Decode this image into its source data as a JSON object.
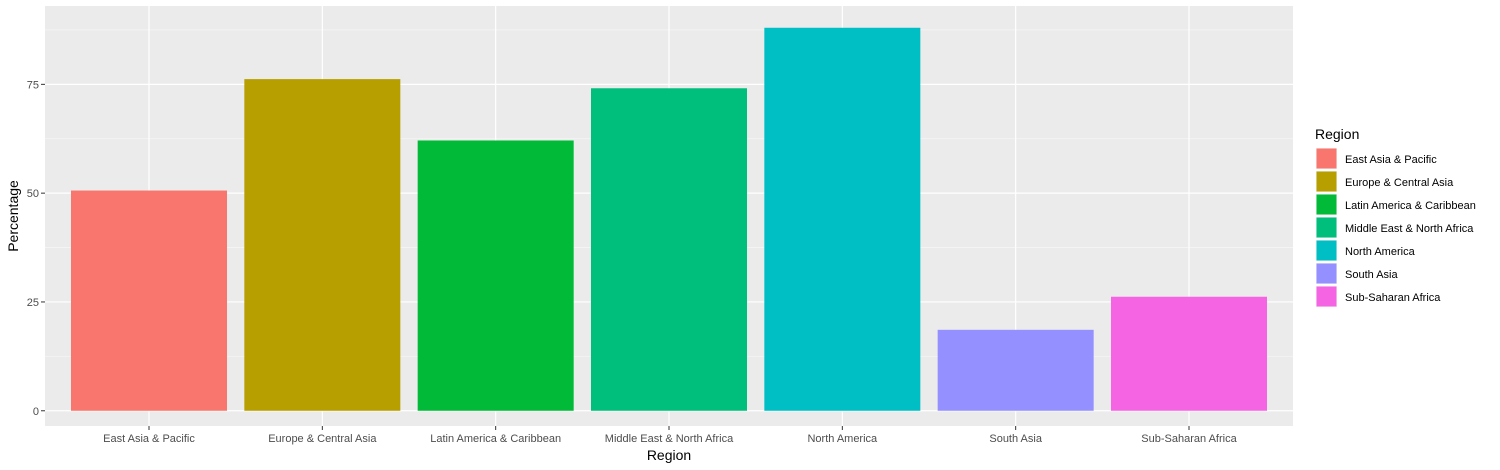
{
  "chart_data": {
    "type": "bar",
    "title": "",
    "xlabel": "Region",
    "ylabel": "Percentage",
    "ylim": [
      -3.5,
      93
    ],
    "yticks": [
      0,
      25,
      50,
      75
    ],
    "grid": true,
    "legend_position": "right",
    "legend_title": "Region",
    "categories": [
      "East Asia & Pacific",
      "Europe & Central Asia",
      "Latin America & Caribbean",
      "Middle East & North Africa",
      "North America",
      "South Asia",
      "Sub-Saharan Africa"
    ],
    "values": [
      50.6,
      76.2,
      62.1,
      74.1,
      88.0,
      18.6,
      26.2
    ],
    "colors": [
      "#F8766D",
      "#B79F00",
      "#00BA38",
      "#00BF7D",
      "#00BFC4",
      "#9590FF",
      "#F564E3"
    ],
    "legend_entries": [
      {
        "label": "East Asia & Pacific",
        "color": "#F8766D"
      },
      {
        "label": "Europe & Central Asia",
        "color": "#B79F00"
      },
      {
        "label": "Latin America & Caribbean",
        "color": "#00BA38"
      },
      {
        "label": "Middle East & North Africa",
        "color": "#00BF7D"
      },
      {
        "label": "North America",
        "color": "#00BFC4"
      },
      {
        "label": "South Asia",
        "color": "#9590FF"
      },
      {
        "label": "Sub-Saharan Africa",
        "color": "#F564E3"
      }
    ]
  }
}
